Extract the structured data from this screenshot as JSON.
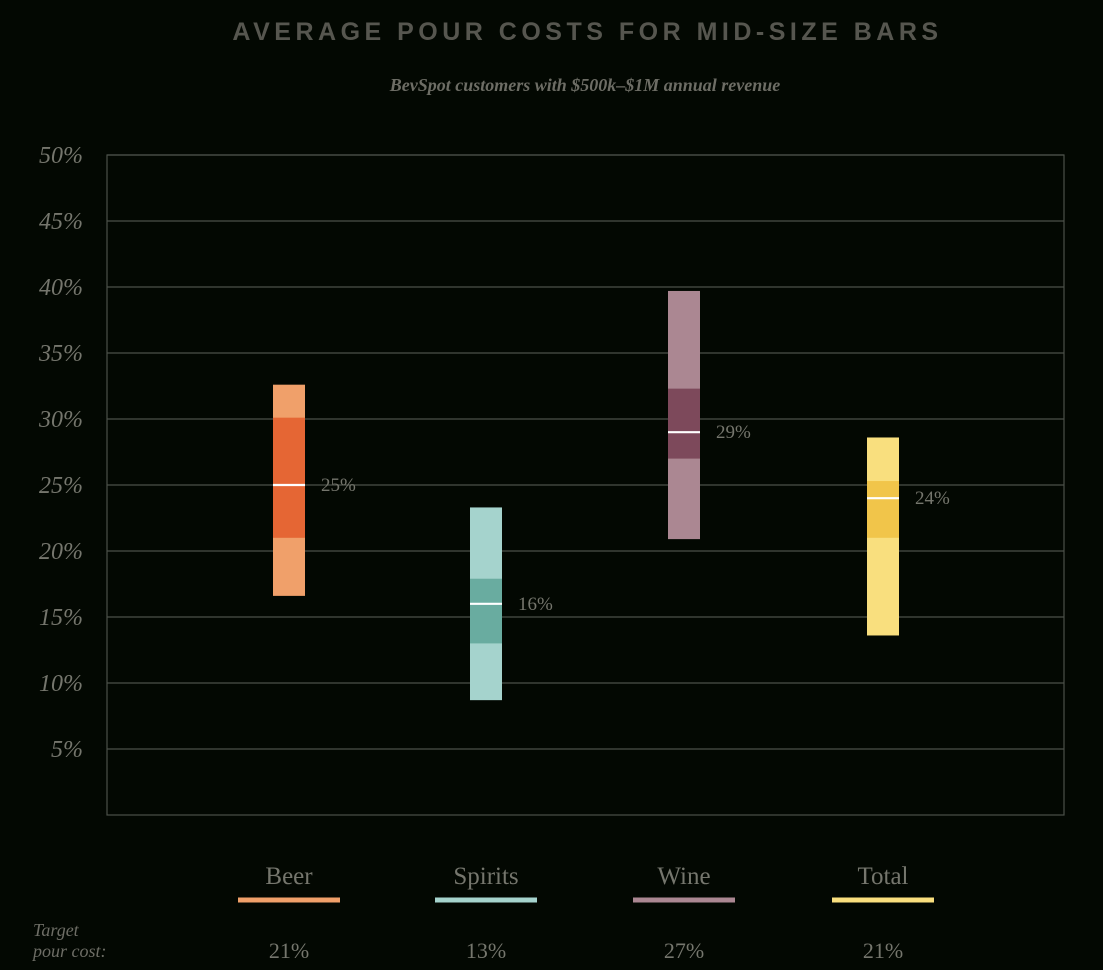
{
  "title": "AVERAGE POUR COSTS FOR MID-SIZE BARS",
  "subtitle": "BevSpot customers with $500k–$1M annual revenue",
  "target_label_line1": "Target",
  "target_label_line2": "pour cost:",
  "colors": {
    "background": "#030802",
    "grid": "#4b5049",
    "axis_text": "#75766d",
    "median_line": "#ffffff"
  },
  "chart_data": {
    "type": "box",
    "title": "AVERAGE POUR COSTS FOR MID-SIZE BARS",
    "subtitle": "BevSpot customers with $500k–$1M annual revenue",
    "ylim": [
      0,
      50
    ],
    "yticks": [
      5,
      10,
      15,
      20,
      25,
      30,
      35,
      40,
      45,
      50
    ],
    "ytick_labels": [
      "5%",
      "10%",
      "15%",
      "20%",
      "25%",
      "30%",
      "35%",
      "40%",
      "45%",
      "50%"
    ],
    "grid": true,
    "categories": [
      "Beer",
      "Spirits",
      "Wine",
      "Total"
    ],
    "series": [
      {
        "name": "Beer",
        "min": 16.6,
        "q1": 21.0,
        "median": 25.0,
        "q3": 30.1,
        "max": 32.6,
        "median_label": "25%",
        "target": "21%",
        "color_light": "#f0a06a",
        "color_dark": "#e56634"
      },
      {
        "name": "Spirits",
        "min": 8.7,
        "q1": 13.0,
        "median": 16.0,
        "q3": 17.9,
        "max": 23.3,
        "median_label": "16%",
        "target": "13%",
        "color_light": "#a5d3cd",
        "color_dark": "#69aca0"
      },
      {
        "name": "Wine",
        "min": 20.9,
        "q1": 27.0,
        "median": 29.0,
        "q3": 32.3,
        "max": 39.7,
        "median_label": "29%",
        "target": "27%",
        "color_light": "#ab8792",
        "color_dark": "#7d495b"
      },
      {
        "name": "Total",
        "min": 13.6,
        "q1": 21.0,
        "median": 24.0,
        "q3": 25.3,
        "max": 28.6,
        "median_label": "24%",
        "target": "21%",
        "color_light": "#f9df7e",
        "color_dark": "#f1c54a"
      }
    ]
  }
}
